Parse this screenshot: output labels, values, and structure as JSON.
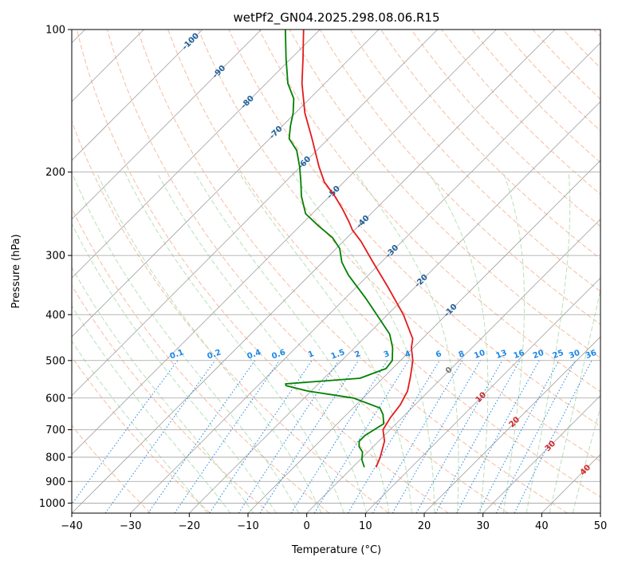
{
  "chart_data": {
    "type": "line",
    "title": "wetPf2_GN04.2025.298.08.06.R15",
    "xlabel": "Temperature (°C)",
    "ylabel": "Pressure (hPa)",
    "xlim": [
      -40,
      50
    ],
    "ylim_hpa": [
      1050,
      100
    ],
    "x_ticks": [
      -40,
      -30,
      -20,
      -10,
      0,
      10,
      20,
      30,
      40,
      50
    ],
    "y_ticks": [
      100,
      200,
      300,
      400,
      500,
      600,
      700,
      800,
      900,
      1000
    ],
    "colors": {
      "temperature": "#e41a1c",
      "dewpoint": "#008000",
      "dry_adiabat": "#f4a582",
      "moist_adiabat": "#a6d8a6",
      "mixing_ratio": "#1e88e5",
      "isotherm": "#a0a0a0",
      "isotherm_label": "#1f5f99",
      "moist_label": "#d62728"
    },
    "series": [
      {
        "name": "temperature",
        "points": [
          {
            "p": 840,
            "t": 4.0
          },
          {
            "p": 800,
            "t": 3.0
          },
          {
            "p": 740,
            "t": 1.0
          },
          {
            "p": 700,
            "t": -1.2
          },
          {
            "p": 660,
            "t": -2.0
          },
          {
            "p": 620,
            "t": -2.5
          },
          {
            "p": 580,
            "t": -3.6
          },
          {
            "p": 540,
            "t": -5.6
          },
          {
            "p": 500,
            "t": -7.9
          },
          {
            "p": 470,
            "t": -10.3
          },
          {
            "p": 450,
            "t": -11.6
          },
          {
            "p": 400,
            "t": -17.3
          },
          {
            "p": 350,
            "t": -24.6
          },
          {
            "p": 310,
            "t": -31.4
          },
          {
            "p": 280,
            "t": -37.0
          },
          {
            "p": 265,
            "t": -40.4
          },
          {
            "p": 255,
            "t": -42.3
          },
          {
            "p": 240,
            "t": -45.5
          },
          {
            "p": 225,
            "t": -49.1
          },
          {
            "p": 210,
            "t": -53.3
          },
          {
            "p": 195,
            "t": -56.8
          },
          {
            "p": 170,
            "t": -62.8
          },
          {
            "p": 150,
            "t": -68.4
          },
          {
            "p": 130,
            "t": -73.9
          },
          {
            "p": 115,
            "t": -78.0
          },
          {
            "p": 100,
            "t": -82.8
          }
        ]
      },
      {
        "name": "dewpoint",
        "points": [
          {
            "p": 840,
            "t": 2.0
          },
          {
            "p": 810,
            "t": 0.3
          },
          {
            "p": 780,
            "t": -0.9
          },
          {
            "p": 760,
            "t": -2.4
          },
          {
            "p": 740,
            "t": -3.3
          },
          {
            "p": 720,
            "t": -3.3
          },
          {
            "p": 680,
            "t": -2.1
          },
          {
            "p": 650,
            "t": -3.8
          },
          {
            "p": 630,
            "t": -5.4
          },
          {
            "p": 600,
            "t": -11.6
          },
          {
            "p": 580,
            "t": -20.6
          },
          {
            "p": 565,
            "t": -25.2
          },
          {
            "p": 560,
            "t": -25.6
          },
          {
            "p": 545,
            "t": -13.9
          },
          {
            "p": 520,
            "t": -11.1
          },
          {
            "p": 500,
            "t": -11.4
          },
          {
            "p": 470,
            "t": -13.5
          },
          {
            "p": 440,
            "t": -16.3
          },
          {
            "p": 410,
            "t": -20.4
          },
          {
            "p": 370,
            "t": -26.4
          },
          {
            "p": 330,
            "t": -33.4
          },
          {
            "p": 310,
            "t": -36.7
          },
          {
            "p": 290,
            "t": -39.4
          },
          {
            "p": 275,
            "t": -42.5
          },
          {
            "p": 260,
            "t": -46.8
          },
          {
            "p": 245,
            "t": -51.1
          },
          {
            "p": 225,
            "t": -54.8
          },
          {
            "p": 210,
            "t": -57.3
          },
          {
            "p": 195,
            "t": -60.1
          },
          {
            "p": 180,
            "t": -63.4
          },
          {
            "p": 170,
            "t": -66.7
          },
          {
            "p": 160,
            "t": -68.6
          },
          {
            "p": 150,
            "t": -70.4
          },
          {
            "p": 140,
            "t": -72.7
          },
          {
            "p": 130,
            "t": -76.3
          },
          {
            "p": 115,
            "t": -80.9
          },
          {
            "p": 100,
            "t": -85.9
          }
        ]
      }
    ],
    "isotherm_labels": [
      -100,
      -90,
      -80,
      -70,
      -60,
      -50,
      -40,
      -30,
      -20,
      -10
    ],
    "mixing_ratio_labels": [
      "0.1",
      "0.2",
      "0.4",
      "0.6",
      "1",
      "1.5",
      "2",
      "3",
      "4",
      "6",
      "8",
      "10",
      "13",
      "16",
      "20",
      "25",
      "30",
      "36"
    ],
    "moist_adiabat_labels": [
      "0",
      "10",
      "20",
      "30",
      "40"
    ]
  }
}
